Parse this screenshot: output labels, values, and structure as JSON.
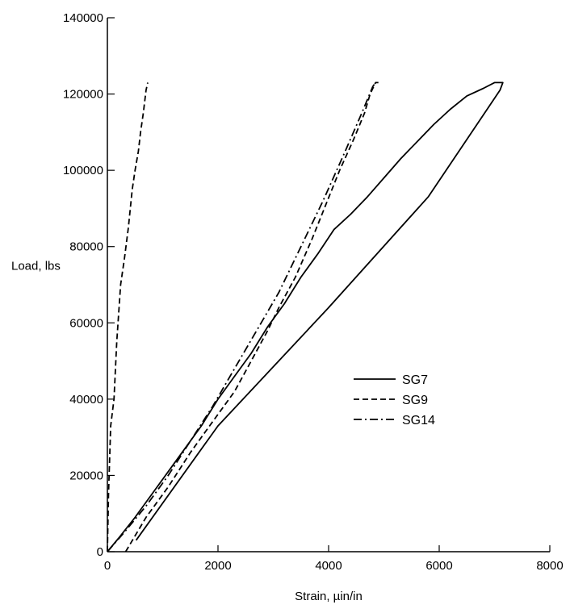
{
  "chart_data": {
    "type": "line",
    "title": "",
    "xlabel": "Strain, µin/in",
    "ylabel": "Load, lbs",
    "xlim": [
      0,
      8000
    ],
    "ylim": [
      0,
      140000
    ],
    "x_ticks": [
      0,
      2000,
      4000,
      6000,
      8000
    ],
    "y_ticks": [
      0,
      20000,
      40000,
      60000,
      80000,
      100000,
      120000,
      140000
    ],
    "x_tick_labels": [
      "0",
      "2000",
      "4000",
      "6000",
      "8000"
    ],
    "y_tick_labels": [
      "0",
      "20000",
      "40000",
      "60000",
      "80000",
      "100000",
      "120000",
      "140000"
    ],
    "grid": false,
    "legend_position": "center-right",
    "series": [
      {
        "name": "SG7",
        "dash": "solid",
        "color": "#000000",
        "points": [
          [
            0,
            0
          ],
          [
            200,
            3500
          ],
          [
            500,
            9000
          ],
          [
            800,
            15000
          ],
          [
            1100,
            21000
          ],
          [
            1400,
            27000
          ],
          [
            1700,
            33000
          ],
          [
            2000,
            40000
          ],
          [
            2300,
            46000
          ],
          [
            2600,
            52000
          ],
          [
            2900,
            59000
          ],
          [
            3200,
            65000
          ],
          [
            3500,
            72000
          ],
          [
            3800,
            78000
          ],
          [
            4100,
            84500
          ],
          [
            4400,
            88500
          ],
          [
            4700,
            93000
          ],
          [
            5000,
            98000
          ],
          [
            5300,
            103000
          ],
          [
            5600,
            107500
          ],
          [
            5900,
            112000
          ],
          [
            6200,
            116000
          ],
          [
            6500,
            119500
          ],
          [
            6800,
            121500
          ],
          [
            7000,
            123000
          ],
          [
            7150,
            123000
          ],
          [
            7100,
            121000
          ],
          [
            5800,
            93000
          ],
          [
            4000,
            64000
          ],
          [
            2000,
            33000
          ],
          [
            520,
            3000
          ]
        ]
      },
      {
        "name": "SG9",
        "dash": "dashed",
        "color": "#000000",
        "points": [
          [
            0,
            0
          ],
          [
            20,
            15000
          ],
          [
            60,
            33000
          ],
          [
            120,
            40000
          ],
          [
            170,
            55000
          ],
          [
            240,
            70000
          ],
          [
            310,
            77000
          ],
          [
            380,
            85000
          ],
          [
            450,
            95000
          ],
          [
            500,
            100000
          ],
          [
            560,
            105000
          ],
          [
            600,
            110000
          ],
          [
            650,
            115000
          ],
          [
            700,
            121000
          ],
          [
            730,
            123000
          ]
        ]
      },
      {
        "name": "SG9",
        "dash": "dashed",
        "color": "#000000",
        "points": [
          [
            330,
            0
          ],
          [
            700,
            9000
          ],
          [
            1100,
            17000
          ],
          [
            1500,
            26000
          ],
          [
            1900,
            34000
          ],
          [
            2300,
            42000
          ],
          [
            2600,
            50000
          ],
          [
            2900,
            58000
          ],
          [
            3100,
            64000
          ],
          [
            3400,
            72000
          ],
          [
            3700,
            82000
          ],
          [
            3950,
            91000
          ],
          [
            4200,
            100000
          ],
          [
            4450,
            108000
          ],
          [
            4650,
            115000
          ],
          [
            4750,
            120000
          ],
          [
            4850,
            123000
          ],
          [
            4900,
            123000
          ]
        ]
      },
      {
        "name": "SG14",
        "dash": "dashdot",
        "color": "#000000",
        "points": [
          [
            0,
            0
          ],
          [
            300,
            5000
          ],
          [
            700,
            12000
          ],
          [
            1100,
            20000
          ],
          [
            1500,
            29000
          ],
          [
            1900,
            38000
          ],
          [
            2300,
            48000
          ],
          [
            2700,
            58000
          ],
          [
            3100,
            68000
          ],
          [
            3500,
            80000
          ],
          [
            3900,
            92000
          ],
          [
            4300,
            105000
          ],
          [
            4600,
            115000
          ],
          [
            4800,
            122000
          ],
          [
            4850,
            123000
          ]
        ]
      }
    ]
  },
  "legend": [
    {
      "label": "SG7",
      "dash": "solid"
    },
    {
      "label": "SG9",
      "dash": "dashed"
    },
    {
      "label": "SG14",
      "dash": "dashdot"
    }
  ]
}
